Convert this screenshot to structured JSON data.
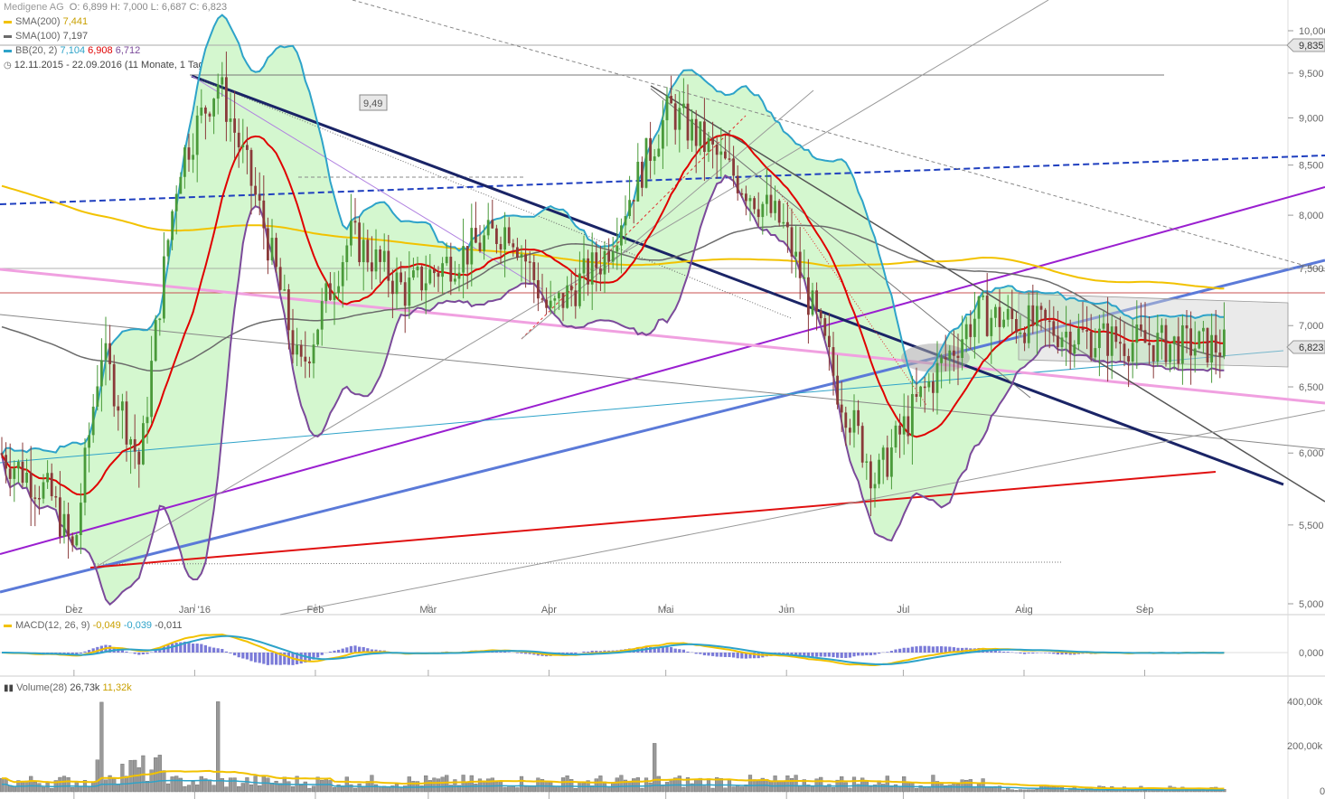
{
  "header": {
    "symbol": "Medigene AG",
    "ohlc": "O: 6,899  H: 7,000  L: 6,687  C: 6,823",
    "sma200_label": "SMA(200)",
    "sma200_value": "7,441",
    "sma100_label": "SMA(100)",
    "sma100_value": "7,197",
    "bb_label": "BB(20, 2)",
    "bb_mid": "7,104",
    "bb_up": "6,908",
    "bb_low": "6,712",
    "range": "12.11.2015 - 22.09.2016 (11 Monate, 1 Tag)"
  },
  "price_tags": {
    "high_tag": "9,835",
    "last_tag": "6,823",
    "annotation_box": "9,49"
  },
  "macd_legend": {
    "label": "MACD(12, 26, 9)",
    "v1": "-0,049",
    "v2": "-0,039",
    "v3": "-0,011"
  },
  "volume_legend": {
    "label": "Volume(28)",
    "v1": "26,73k",
    "v2": "11,32k"
  },
  "colors": {
    "sma200": "#f2c200",
    "sma100": "#6b6b6b",
    "bb": "#2ea3c9",
    "bb_fill": "#d4f7cf",
    "bb_mid": "#e00000",
    "macd": "#f2c200",
    "signal": "#2ea3c9",
    "hist": "#7b7bd8",
    "up": "#4a9a3a",
    "down": "#8a3a3a",
    "volume": "#999999"
  },
  "chart_data": {
    "type": "candlestick",
    "y_scale": "log",
    "ylim": [
      5.0,
      10.0
    ],
    "y_ticks": [
      "10,000",
      "9,500",
      "9,000",
      "8,500",
      "8,000",
      "7,500",
      "7,000",
      "6,500",
      "6,000",
      "5,500",
      "5,000"
    ],
    "x_ticks": [
      "Dez",
      "Jan '16",
      "Feb",
      "Mär",
      "Apr",
      "Mai",
      "Jun",
      "Jul",
      "Aug",
      "Sep"
    ],
    "macd_ticks": [
      "0,000"
    ],
    "volume_ticks": [
      "400,00k",
      "200,00k",
      "0"
    ],
    "price_points": [
      {
        "date": "2015-11-12",
        "close": 6.0
      },
      {
        "date": "2015-11-25",
        "close": 5.7
      },
      {
        "date": "2015-12-01",
        "close": 5.3
      },
      {
        "date": "2015-12-08",
        "close": 6.8
      },
      {
        "date": "2015-12-18",
        "close": 5.9
      },
      {
        "date": "2015-12-28",
        "close": 8.5
      },
      {
        "date": "2016-01-07",
        "close": 9.4
      },
      {
        "date": "2016-01-18",
        "close": 8.0
      },
      {
        "date": "2016-01-28",
        "close": 6.6
      },
      {
        "date": "2016-02-10",
        "close": 7.8
      },
      {
        "date": "2016-02-24",
        "close": 7.3
      },
      {
        "date": "2016-03-08",
        "close": 7.6
      },
      {
        "date": "2016-03-22",
        "close": 7.9
      },
      {
        "date": "2016-04-01",
        "close": 7.1
      },
      {
        "date": "2016-04-15",
        "close": 7.6
      },
      {
        "date": "2016-05-02",
        "close": 9.1
      },
      {
        "date": "2016-05-16",
        "close": 8.5
      },
      {
        "date": "2016-05-31",
        "close": 7.9
      },
      {
        "date": "2016-06-14",
        "close": 6.5
      },
      {
        "date": "2016-06-24",
        "close": 5.8
      },
      {
        "date": "2016-07-05",
        "close": 6.4
      },
      {
        "date": "2016-07-20",
        "close": 7.1
      },
      {
        "date": "2016-08-04",
        "close": 7.0
      },
      {
        "date": "2016-08-18",
        "close": 6.9
      },
      {
        "date": "2016-09-02",
        "close": 6.85
      },
      {
        "date": "2016-09-22",
        "close": 6.823
      }
    ],
    "volume_points": [
      {
        "date": "2015-12-08",
        "value": 400000
      },
      {
        "date": "2016-01-07",
        "value": 420000
      },
      {
        "date": "2016-04-28",
        "value": 230000
      }
    ]
  }
}
